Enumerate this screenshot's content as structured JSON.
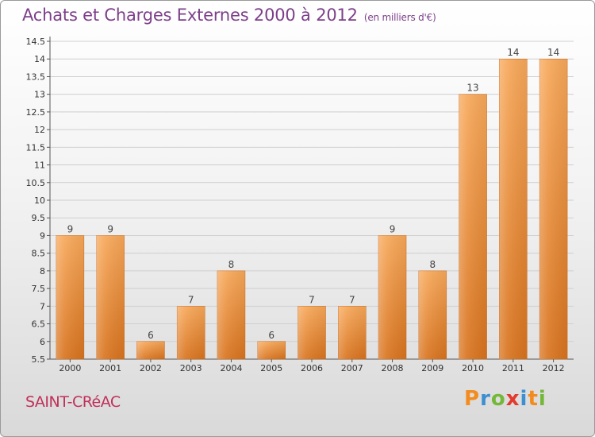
{
  "header": {
    "title": "Achats et Charges Externes 2000 à 2012",
    "subtitle": "(en milliers d'€)"
  },
  "footer": {
    "city": "SAINT-CRéAC",
    "logo": [
      {
        "char": "P",
        "color": "#f28c1e"
      },
      {
        "char": "r",
        "color": "#3d8fd1"
      },
      {
        "char": "o",
        "color": "#74b83a"
      },
      {
        "char": "x",
        "color": "#e23b2e"
      },
      {
        "char": "i",
        "color": "#3d8fd1"
      },
      {
        "char": "t",
        "color": "#f28c1e"
      },
      {
        "char": "i",
        "color": "#74b83a"
      }
    ]
  },
  "colors": {
    "bar_top": "#f7a85a",
    "bar_bottom": "#d8731e",
    "grid": "#cfcfcf",
    "title": "#7d3f8a",
    "city": "#c0305a"
  },
  "chart_data": {
    "type": "bar",
    "title": "Achats et Charges Externes 2000 à 2012",
    "subtitle": "(en milliers d'€)",
    "xlabel": "",
    "ylabel": "",
    "categories": [
      "2000",
      "2001",
      "2002",
      "2003",
      "2004",
      "2005",
      "2006",
      "2007",
      "2008",
      "2009",
      "2010",
      "2011",
      "2012"
    ],
    "values": [
      9,
      9,
      6,
      7,
      8,
      6,
      7,
      7,
      9,
      8,
      13,
      14,
      14
    ],
    "value_labels": [
      "9",
      "9",
      "6",
      "7",
      "8",
      "6",
      "7",
      "7",
      "9",
      "8",
      "13",
      "14",
      "14"
    ],
    "ylim": [
      5.5,
      14.5
    ],
    "yticks": [
      5.5,
      6,
      6.5,
      7,
      7.5,
      8,
      8.5,
      9,
      9.5,
      10,
      10.5,
      11,
      11.5,
      12,
      12.5,
      13,
      13.5,
      14,
      14.5
    ],
    "ytick_labels": [
      "5.5",
      "6",
      "6.5",
      "7",
      "7.5",
      "8",
      "8.5",
      "9",
      "9.5",
      "10",
      "10.5",
      "11",
      "11.5",
      "12",
      "12.5",
      "13",
      "13.5",
      "14",
      "14.5"
    ],
    "grid": true,
    "legend": "none"
  }
}
